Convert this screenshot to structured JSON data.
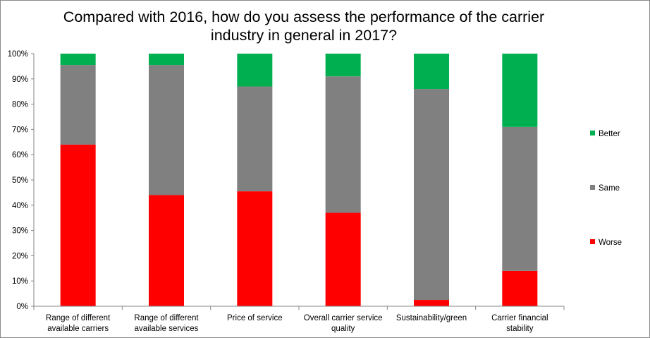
{
  "chart_data": {
    "type": "bar",
    "stacked": true,
    "percent_stacked": true,
    "title": "Compared with 2016, how do you assess the performance of the carrier industry in general in 2017?",
    "categories": [
      "Range of different available carriers",
      "Range of different available services",
      "Price of service",
      "Overall carrier service quality",
      "Sustainability/green",
      "Carrier financial stability"
    ],
    "series": [
      {
        "name": "Worse",
        "color": "#ff0000",
        "values": [
          64,
          44,
          45.5,
          37,
          2.5,
          14
        ]
      },
      {
        "name": "Same",
        "color": "#808080",
        "values": [
          31.5,
          51.5,
          41.5,
          54,
          83.5,
          57
        ]
      },
      {
        "name": "Better",
        "color": "#00b050",
        "values": [
          4.5,
          4.5,
          13,
          9,
          14,
          29
        ]
      }
    ],
    "legend_order": [
      "Better",
      "Same",
      "Worse"
    ],
    "ylim": [
      0,
      100
    ],
    "yticks": [
      "0%",
      "10%",
      "20%",
      "30%",
      "40%",
      "50%",
      "60%",
      "70%",
      "80%",
      "90%",
      "100%"
    ],
    "legend_position": "right",
    "grid": false
  }
}
